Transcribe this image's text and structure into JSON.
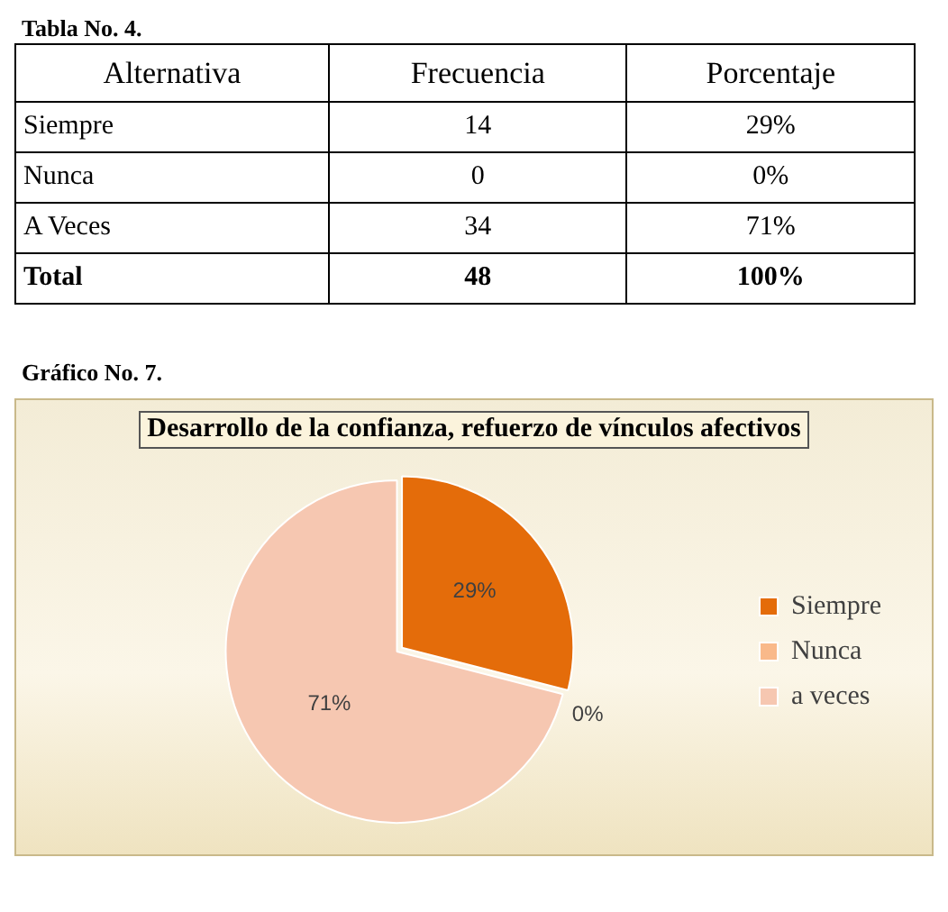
{
  "chart_data": [
    {
      "type": "other",
      "title": "Tabla No. 4.",
      "annotations": [
        "Alternativa",
        "Frecuencia",
        "Porcentaje",
        "Siempre",
        "14",
        "29%",
        "Nunca",
        "0",
        "0%",
        "A Veces",
        "34",
        "71%",
        "Total",
        "48",
        "100%"
      ]
    },
    {
      "type": "pie",
      "title": "Desarrollo de la confianza, refuerzo de vínculos afectivos",
      "annotations": [
        "Gráfico No. 7."
      ],
      "categories": [
        "Siempre",
        "Nunca",
        "a veces"
      ],
      "values": [
        29,
        0,
        71
      ],
      "colors": [
        "#e46c0a",
        "#f9b98a",
        "#f6c7b1"
      ],
      "value_labels": [
        "29%",
        "0%",
        "71%"
      ],
      "legend": "right"
    }
  ]
}
